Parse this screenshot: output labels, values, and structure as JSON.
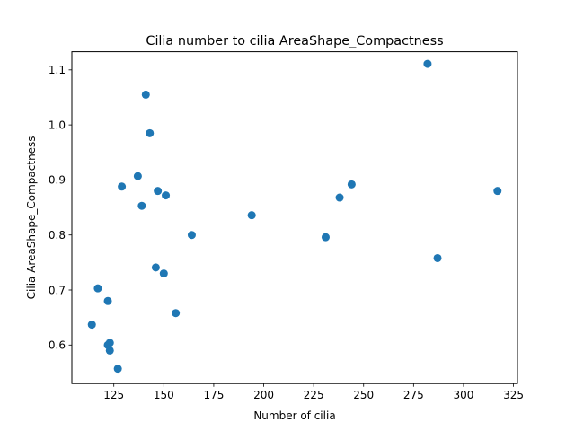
{
  "chart_data": {
    "type": "scatter",
    "title": "Cilia number to cilia AreaShape_Compactness",
    "xlabel": "Number of cilia",
    "ylabel": "Cilia AreaShape_Compactness",
    "xlim": [
      104,
      327
    ],
    "ylim": [
      0.53,
      1.133
    ],
    "xticks": [
      125,
      150,
      175,
      200,
      225,
      250,
      275,
      300,
      325
    ],
    "yticks": [
      0.6,
      0.7,
      0.8,
      0.9,
      1.0,
      1.1
    ],
    "ytick_labels": [
      "0.6",
      "0.7",
      "0.8",
      "0.9",
      "1.0",
      "1.1"
    ],
    "grid": false,
    "color": "#1f77b4",
    "x": [
      114,
      117,
      122,
      122,
      123,
      123,
      127,
      129,
      137,
      139,
      141,
      143,
      146,
      147,
      150,
      151,
      156,
      164,
      194,
      231,
      238,
      244,
      282,
      287,
      317
    ],
    "y": [
      0.637,
      0.703,
      0.68,
      0.6,
      0.59,
      0.604,
      0.557,
      0.888,
      0.907,
      0.853,
      1.055,
      0.985,
      0.741,
      0.88,
      0.73,
      0.872,
      0.658,
      0.8,
      0.836,
      0.796,
      0.868,
      0.892,
      1.111,
      0.758,
      0.88
    ]
  }
}
